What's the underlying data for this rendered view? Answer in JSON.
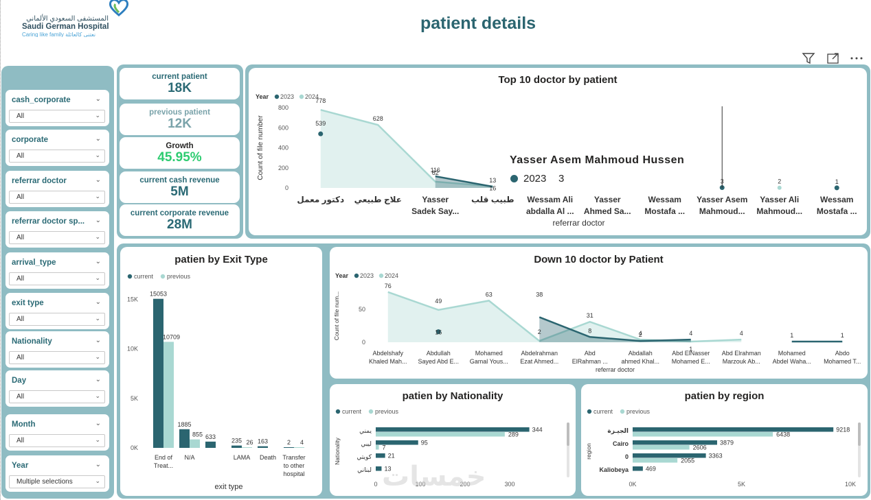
{
  "header": {
    "title": "patient details",
    "logo_arabic": "المستشفى السعودي الألماني",
    "logo_name": "Saudi German Hospital",
    "logo_tagline": "Caring like family  نعتني كالعائلة",
    "watermark": "خمسات"
  },
  "toolbar": {
    "filter_icon": "filter-icon",
    "focus_icon": "focus-mode-icon",
    "more_icon": "more-options-icon"
  },
  "filters": [
    {
      "label": "cash_corporate",
      "value": "All"
    },
    {
      "label": "corporate",
      "value": "All"
    },
    {
      "label": "referrar doctor",
      "value": "All"
    },
    {
      "label": "referrar doctor sp...",
      "value": "All"
    },
    {
      "label": "arrival_type",
      "value": "All"
    },
    {
      "label": "exit type",
      "value": "All"
    },
    {
      "label": "Nationality",
      "value": "All"
    },
    {
      "label": "Day",
      "value": "All"
    },
    {
      "label": "Month",
      "value": "All"
    },
    {
      "label": "Year",
      "value": "Multiple selections"
    }
  ],
  "kpis": [
    {
      "label": "current patient",
      "value": "18K"
    },
    {
      "label": "previous patient",
      "value": "12K"
    },
    {
      "label": "Growth",
      "value": "45.95%"
    },
    {
      "label": "current cash revenue",
      "value": "5M"
    },
    {
      "label": "current corporate revenue",
      "value": "28M"
    }
  ],
  "colors": {
    "dark": "#2b6570",
    "light": "#a9d8d2",
    "frame": "#8fbcc3",
    "green": "#2ecc71"
  },
  "chart_data": [
    {
      "type": "area",
      "id": "top10",
      "title": "Top 10 doctor by patient",
      "legend_title": "Year",
      "legend": [
        "2023",
        "2024"
      ],
      "xlabel": "referrar doctor",
      "ylabel": "Count of file number",
      "ylim": [
        0,
        800
      ],
      "yticks": [
        "800",
        "600",
        "400",
        "200",
        "0"
      ],
      "categories": [
        [
          "دكتور معمل"
        ],
        [
          "علاج طبيعي"
        ],
        [
          "Yasser",
          "Sadek Say..."
        ],
        [
          "طبيب قلب"
        ],
        [
          "Wessam Ali",
          "abdalla Al ..."
        ],
        [
          "Yasser",
          "Ahmed Sa..."
        ],
        [
          "Wessam",
          "Mostafa ..."
        ],
        [
          "Yasser Asem",
          "Mahmoud..."
        ],
        [
          "Yasser Ali",
          "Mahmoud..."
        ],
        [
          "Wessam",
          "Mostafa ..."
        ]
      ],
      "series": [
        {
          "name": "2023",
          "values": [
            539,
            null,
            116,
            13,
            null,
            null,
            null,
            3,
            null,
            1
          ]
        },
        {
          "name": "2024",
          "values": [
            778,
            628,
            62,
            16,
            null,
            null,
            null,
            null,
            2,
            null
          ]
        }
      ],
      "tooltip": {
        "name": "Yasser Asem Mahmoud Hussen",
        "year": "2023",
        "value": "3"
      }
    },
    {
      "type": "bar",
      "id": "exit",
      "title": "patien by Exit Type",
      "legend": [
        "current",
        "previous"
      ],
      "xlabel": "exit type",
      "ylim": [
        0,
        16000
      ],
      "yticks": [
        "15K",
        "10K",
        "5K",
        "0K"
      ],
      "categories": [
        [
          "End of",
          "Treat..."
        ],
        [
          "N/A"
        ],
        [
          ""
        ],
        [
          "LAMA"
        ],
        [
          "Death"
        ],
        [
          "Transfer",
          "to other",
          "hospital"
        ]
      ],
      "series": [
        {
          "name": "current",
          "values": [
            15053,
            1885,
            633,
            235,
            163,
            2
          ]
        },
        {
          "name": "previous",
          "values": [
            10709,
            855,
            null,
            26,
            null,
            4
          ]
        }
      ]
    },
    {
      "type": "area",
      "id": "down10",
      "title": "Down 10 doctor by Patient",
      "legend_title": "Year",
      "legend": [
        "2023",
        "2024"
      ],
      "xlabel": "referrar doctor",
      "ylabel": "Count of file num...",
      "ylim": [
        0,
        80
      ],
      "yticks": [
        "50",
        "0"
      ],
      "categories": [
        [
          "Abdelshafy",
          "Khaled Mah..."
        ],
        [
          "Abdullah",
          "Sayed Abd E..."
        ],
        [
          "Mohamed",
          "Gamal Yous..."
        ],
        [
          "Abdelrahman",
          "Ezat Ahmed..."
        ],
        [
          "Abd",
          "ElRahman ..."
        ],
        [
          "Abdallah",
          "ahmed Khal..."
        ],
        [
          "Abd ElNasser",
          "Mohamed E..."
        ],
        [
          "Abd Elrahman",
          "Marzouk Ab..."
        ],
        [
          "Mohamed",
          "Abdel Waha..."
        ],
        [
          "Abdo",
          "Mohamed T..."
        ]
      ],
      "series": [
        {
          "name": "2023",
          "values": [
            null,
            16,
            null,
            38,
            8,
            2,
            4,
            null,
            1,
            1
          ]
        },
        {
          "name": "2024",
          "values": [
            76,
            49,
            63,
            2,
            31,
            4,
            1,
            4,
            null,
            null
          ]
        }
      ]
    },
    {
      "type": "hbar",
      "id": "nationality",
      "title": "patien by Nationality",
      "legend": [
        "current",
        "previous"
      ],
      "ylabel": "Nationality",
      "xlim": [
        0,
        400
      ],
      "xticks": [
        "0",
        "100",
        "200",
        "300"
      ],
      "categories": [
        "يمني",
        "ليبي",
        "كويتي",
        "لبناني"
      ],
      "series": [
        {
          "name": "current",
          "values": [
            344,
            95,
            21,
            13
          ]
        },
        {
          "name": "previous",
          "values": [
            289,
            7,
            null,
            null
          ]
        }
      ]
    },
    {
      "type": "hbar",
      "id": "region",
      "title": "patien by region",
      "legend": [
        "current",
        "previous"
      ],
      "ylabel": "region",
      "xlim": [
        0,
        10000
      ],
      "xticks": [
        "0K",
        "5K",
        "10K"
      ],
      "categories": [
        "الجيـزة",
        "Cairo",
        "0",
        "Kaliobeya"
      ],
      "series": [
        {
          "name": "current",
          "values": [
            9218,
            3879,
            3363,
            469
          ]
        },
        {
          "name": "previous",
          "values": [
            6438,
            2606,
            2055,
            null
          ]
        }
      ]
    }
  ]
}
